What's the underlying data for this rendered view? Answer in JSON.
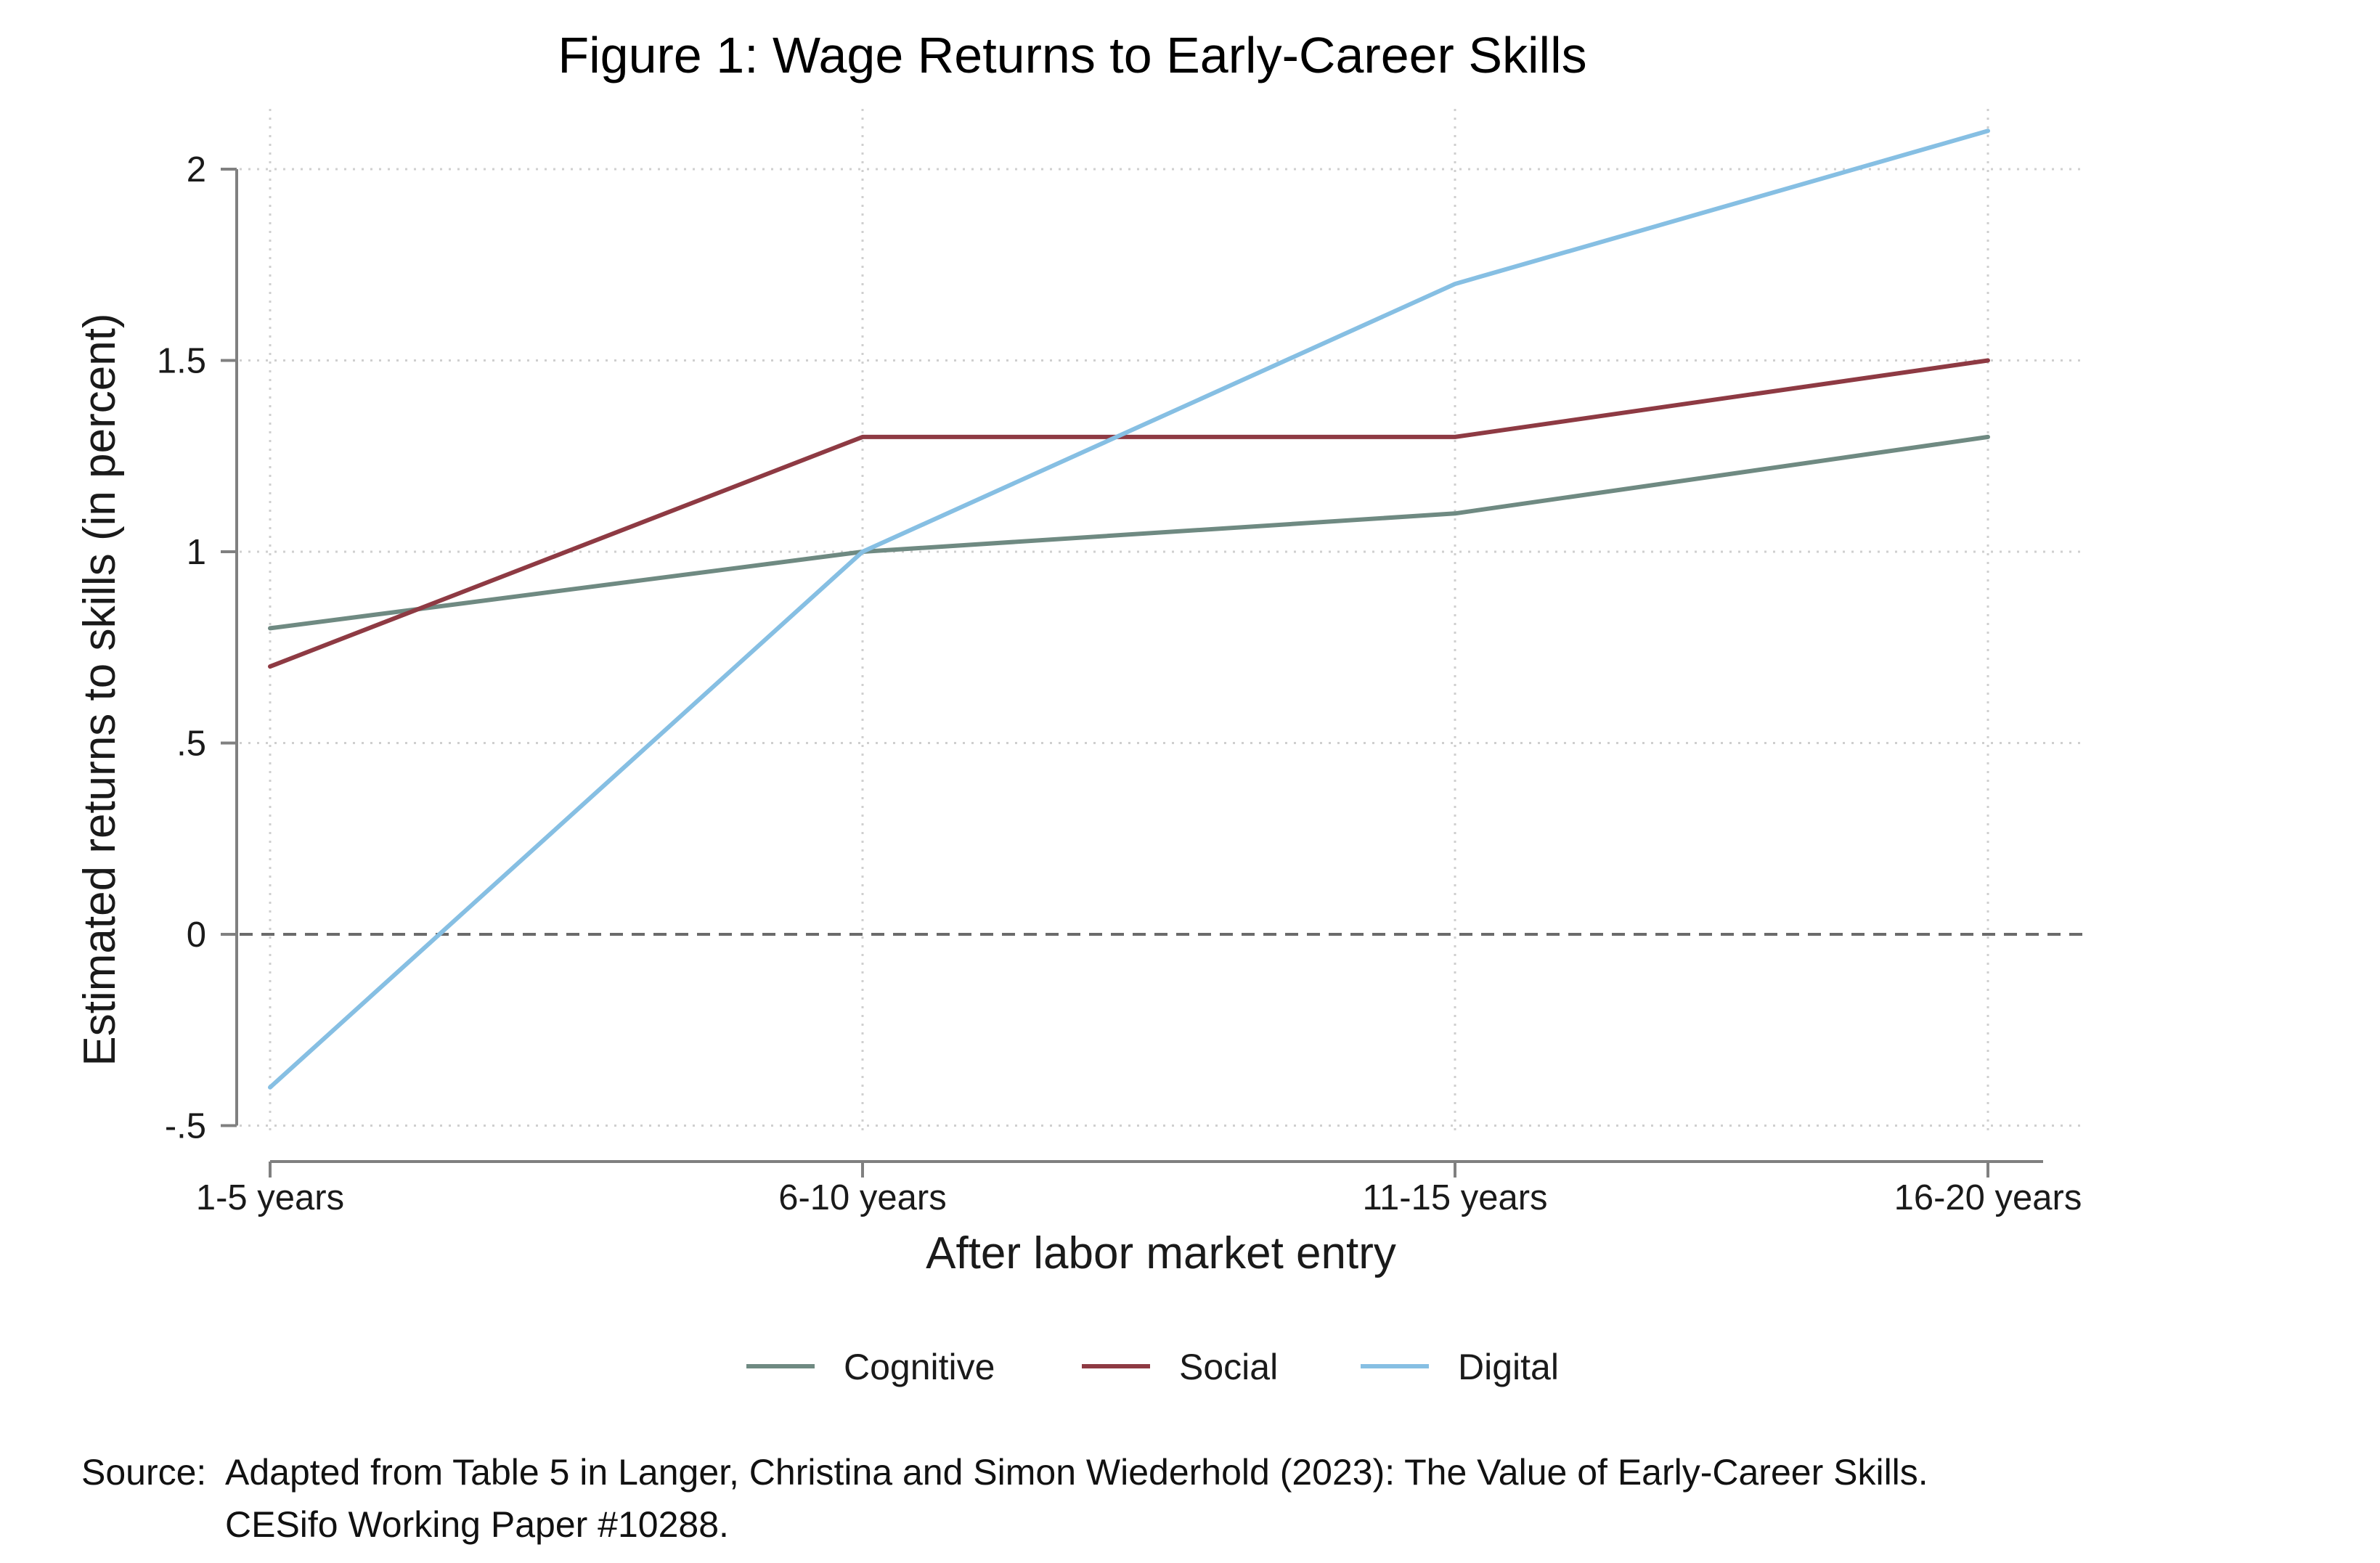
{
  "page": {
    "source_prefix": "Source:",
    "source_line1": "Adapted from Table 5 in Langer, Christina and Simon Wiederhold (2023): The Value of Early-Career Skills.",
    "source_line2": "CESifo Working Paper #10288."
  },
  "chart_data": {
    "type": "line",
    "title": "Figure 1: Wage Returns to Early-Career Skills",
    "xlabel": "After labor market entry",
    "ylabel": "Estimated returns to skills (in percent)",
    "categories": [
      "1-5 years",
      "6-10 years",
      "11-15 years",
      "16-20 years"
    ],
    "ylim": [
      -0.5,
      2.1
    ],
    "yticks": [
      {
        "value": -0.5,
        "label": "-.5"
      },
      {
        "value": 0,
        "label": "0"
      },
      {
        "value": 0.5,
        "label": ".5"
      },
      {
        "value": 1,
        "label": "1"
      },
      {
        "value": 1.5,
        "label": "1.5"
      },
      {
        "value": 2,
        "label": "2"
      }
    ],
    "reference_line": {
      "value": 0,
      "style": "dashed"
    },
    "grid": true,
    "legend_position": "bottom",
    "series": [
      {
        "name": "Cognitive",
        "color": "#6f8a82",
        "values": [
          0.8,
          1.0,
          1.1,
          1.3
        ]
      },
      {
        "name": "Social",
        "color": "#8e3a43",
        "values": [
          0.7,
          1.3,
          1.3,
          1.5
        ]
      },
      {
        "name": "Digital",
        "color": "#86bfe3",
        "values": [
          -0.4,
          1.0,
          1.7,
          2.1
        ]
      }
    ]
  }
}
